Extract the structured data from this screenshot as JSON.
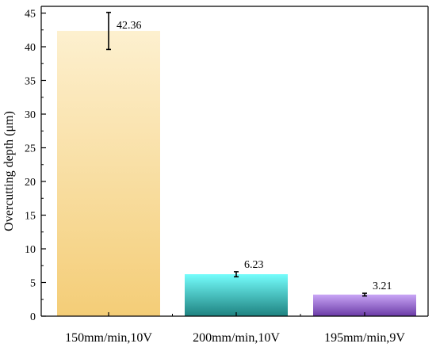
{
  "chart_data": {
    "type": "bar",
    "title": "",
    "xlabel": "",
    "ylabel": "Overcutting depth (μm)",
    "categories": [
      "150mm/min,10V",
      "200mm/min,10V",
      "195mm/min,9V"
    ],
    "values": [
      42.36,
      6.23,
      3.21
    ],
    "value_labels": [
      "42.36",
      "6.23",
      "3.21"
    ],
    "error_bars": [
      {
        "low": 39.6,
        "high": 45.1
      },
      {
        "low": 5.85,
        "high": 6.6
      },
      {
        "low": 3.0,
        "high": 3.4
      }
    ],
    "ylim": [
      0,
      46
    ],
    "yticks": [
      0,
      5,
      10,
      15,
      20,
      25,
      30,
      35,
      40,
      45
    ],
    "grid": false,
    "legend": "none",
    "bar_gradients": [
      {
        "top": "#fdf0cf",
        "bottom": "#f4cd77"
      },
      {
        "top": "#74fdfc",
        "bottom": "#1e8280"
      },
      {
        "top": "#c9a6f6",
        "bottom": "#6a3aa6"
      }
    ]
  }
}
